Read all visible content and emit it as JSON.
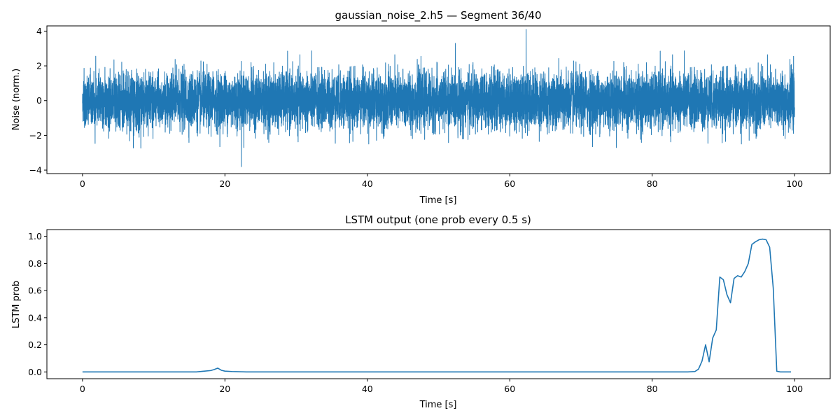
{
  "chart_data": [
    {
      "type": "line",
      "title": "gaussian_noise_2.h5 — Segment 36/40",
      "xlabel": "Time [s]",
      "ylabel": "Noise (norm.)",
      "xlim": [
        -5,
        105
      ],
      "ylim": [
        -4.2,
        4.3
      ],
      "xticks": [
        0,
        20,
        40,
        60,
        80,
        100
      ],
      "yticks": [
        -4,
        -2,
        0,
        2,
        4
      ],
      "color": "#1f77b4",
      "grid": false,
      "series": [
        {
          "description_x_range": [
            0,
            100
          ],
          "sampling_step_s": 0.01,
          "distribution": "gaussian, mean 0, std approximately 0.8",
          "y_extremes": {
            "max": {
              "x": 62.3,
              "y": 4.1
            },
            "min": {
              "x": 22.3,
              "y": -3.8
            }
          }
        }
      ]
    },
    {
      "type": "line",
      "title": "LSTM output (one prob every 0.5 s)",
      "xlabel": "Time [s]",
      "ylabel": "LSTM prob",
      "xlim": [
        -5,
        105
      ],
      "ylim": [
        -0.05,
        1.05
      ],
      "xticks": [
        0,
        20,
        40,
        60,
        80,
        100
      ],
      "yticks": [
        0.0,
        0.2,
        0.4,
        0.6,
        0.8,
        1.0
      ],
      "color": "#1f77b4",
      "grid": false,
      "series": [
        {
          "x": [
            0,
            16,
            17,
            18,
            18.5,
            19,
            19.5,
            20,
            21,
            23,
            85,
            86,
            86.5,
            87,
            87.5,
            88,
            88.5,
            89,
            89.5,
            90,
            90.5,
            91,
            91.5,
            92,
            92.5,
            93,
            93.5,
            94,
            94.5,
            95,
            95.5,
            96,
            96.5,
            97,
            97.5,
            98,
            99,
            99.5
          ],
          "y": [
            0,
            0,
            0.005,
            0.01,
            0.018,
            0.028,
            0.012,
            0.006,
            0.003,
            0,
            0,
            0.003,
            0.02,
            0.08,
            0.2,
            0.075,
            0.25,
            0.31,
            0.7,
            0.68,
            0.57,
            0.51,
            0.69,
            0.71,
            0.7,
            0.74,
            0.8,
            0.94,
            0.96,
            0.975,
            0.98,
            0.975,
            0.92,
            0.62,
            0.005,
            0,
            0,
            0
          ]
        }
      ]
    }
  ]
}
